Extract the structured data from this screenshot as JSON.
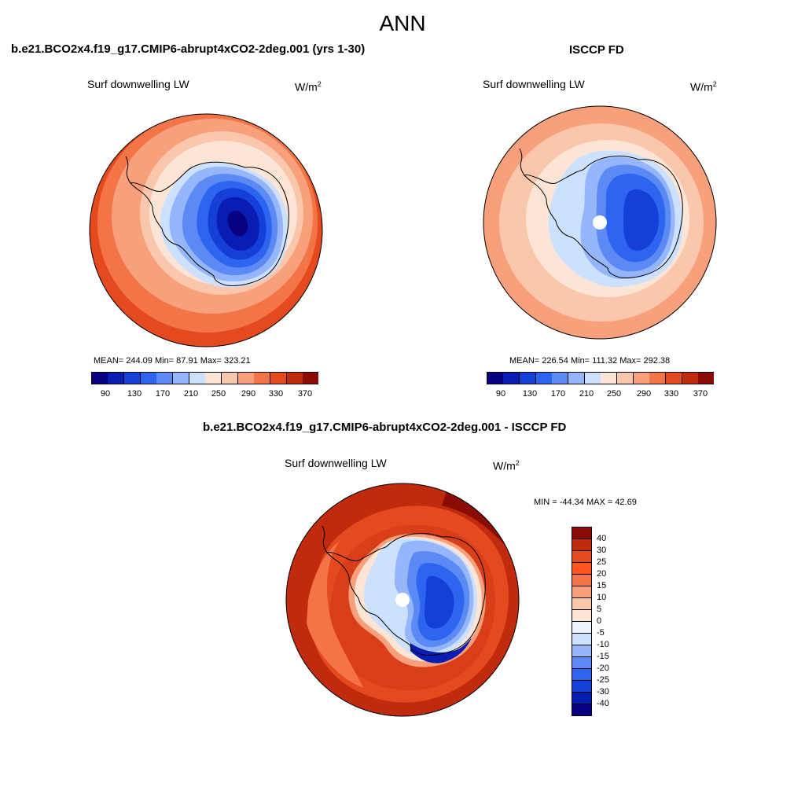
{
  "main_title": "ANN",
  "colors": {
    "abs_scale": [
      "#08007f",
      "#0a1db2",
      "#1440d9",
      "#2d64f0",
      "#5c8af5",
      "#95b6fb",
      "#cce0ff",
      "#fde5d6",
      "#fbc7ac",
      "#f8a07c",
      "#f27447",
      "#e5491e",
      "#c02a0d",
      "#8a0c05"
    ],
    "diff_scale": [
      "#08007f",
      "#0a1db2",
      "#1440d9",
      "#2d64f0",
      "#5c8af5",
      "#95b6fb",
      "#cce0ff",
      "#eef4ff",
      "#fde5d6",
      "#fbc7ac",
      "#f8a07c",
      "#f27447",
      "#ff5522",
      "#e5491e",
      "#c02a0d",
      "#8a0c05"
    ]
  },
  "panels": {
    "model": {
      "title": "b.e21.BCO2x4.f19_g17.CMIP6-abrupt4xCO2-2deg.001 (yrs 1-30)",
      "field": "Surf downwelling LW",
      "units": "W/m",
      "units_exp": "2",
      "stats": "MEAN= 244.09  Min=  87.91  Max= 323.21",
      "ticks": [
        "90",
        "130",
        "170",
        "210",
        "250",
        "290",
        "330",
        "370"
      ]
    },
    "obs": {
      "title": "ISCCP FD",
      "field": "Surf downwelling LW",
      "units": "W/m",
      "units_exp": "2",
      "stats": "MEAN= 226.54  Min= 111.32  Max= 292.38",
      "ticks": [
        "90",
        "130",
        "170",
        "210",
        "250",
        "290",
        "330",
        "370"
      ]
    },
    "diff": {
      "title": "b.e21.BCO2x4.f19_g17.CMIP6-abrupt4xCO2-2deg.001 - ISCCP FD",
      "field": "Surf downwelling LW",
      "units": "W/m",
      "units_exp": "2",
      "stats": "MIN = -44.34 MAX =  42.69",
      "ticks": [
        "40",
        "30",
        "25",
        "20",
        "15",
        "10",
        "5",
        "0",
        "-5",
        "-10",
        "-15",
        "-20",
        "-25",
        "-30",
        "-40"
      ]
    }
  }
}
